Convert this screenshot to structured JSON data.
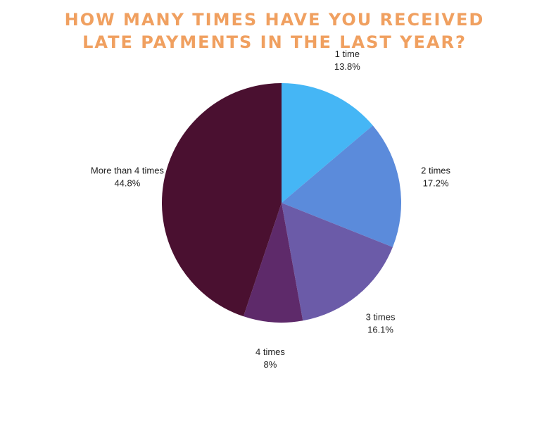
{
  "chart_data": {
    "type": "pie",
    "title": "HOW MANY TIMES HAVE YOU RECEIVED LATE PAYMENTS IN THE LAST YEAR?",
    "categories": [
      "1 time",
      "2 times",
      "3 times",
      "4 times",
      "More than 4 times"
    ],
    "values": [
      13.8,
      17.2,
      16.1,
      8,
      44.8
    ],
    "value_labels": [
      "13.8%",
      "17.2%",
      "16.1%",
      "8%",
      "44.8%"
    ],
    "colors": [
      "#45b6f5",
      "#5b8bdb",
      "#6b5ba8",
      "#5e2a6a",
      "#4a1030"
    ]
  }
}
